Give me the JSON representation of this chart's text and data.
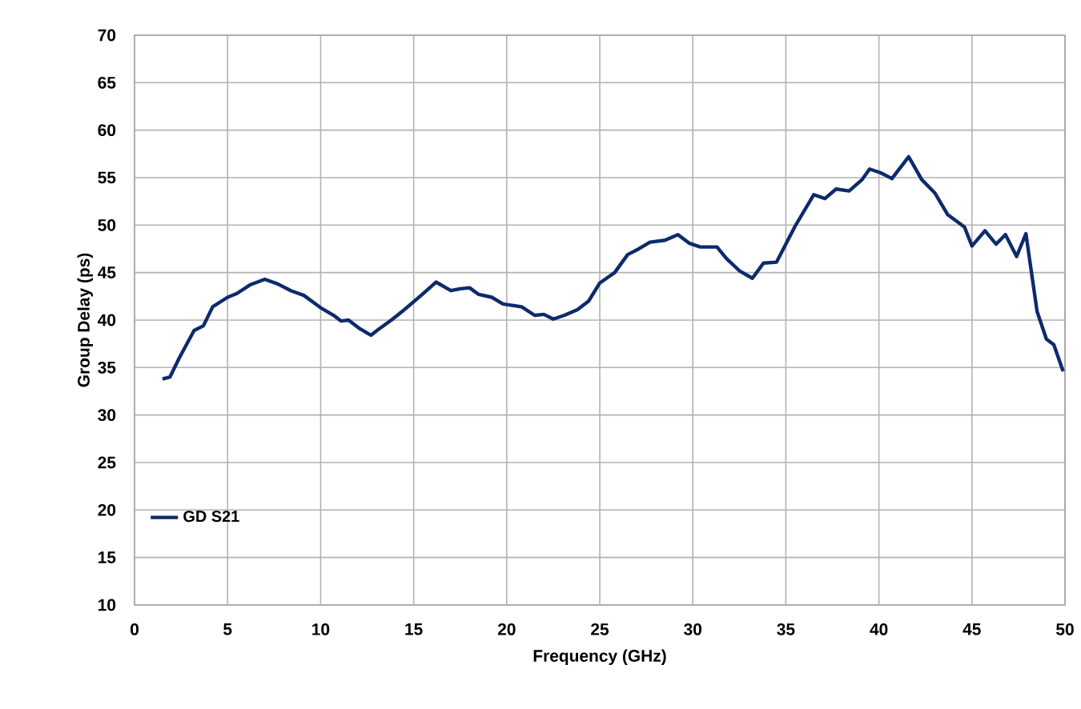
{
  "chart_data": {
    "type": "line",
    "xlabel": "Frequency (GHz)",
    "ylabel": "Group Delay (ps)",
    "xlim": [
      0,
      50
    ],
    "xticks": [
      0,
      5,
      10,
      15,
      20,
      25,
      30,
      35,
      40,
      45,
      50
    ],
    "ylim": [
      10,
      70
    ],
    "yticks": [
      10,
      15,
      20,
      25,
      30,
      35,
      40,
      45,
      50,
      55,
      60,
      65,
      70
    ],
    "grid": true,
    "legend": "bottom left",
    "marker": "none",
    "line_style": "solid",
    "series": [
      {
        "name": "GD S21",
        "color": "#0d2b6b",
        "x": [
          1.5,
          1.9,
          2.4,
          3.2,
          3.7,
          4.2,
          5.0,
          5.5,
          6.2,
          7.0,
          7.7,
          8.4,
          9.1,
          10.0,
          10.7,
          11.1,
          11.5,
          12.1,
          12.7,
          13.1,
          13.8,
          14.5,
          15.4,
          16.2,
          17.0,
          17.5,
          18.0,
          18.5,
          19.2,
          19.8,
          20.8,
          21.5,
          22.0,
          22.5,
          23.1,
          23.8,
          24.4,
          25.0,
          25.8,
          26.5,
          27.1,
          27.7,
          28.5,
          29.2,
          29.8,
          30.4,
          31.3,
          31.8,
          32.5,
          33.2,
          33.8,
          34.5,
          35.5,
          36.5,
          37.1,
          37.7,
          38.4,
          39.1,
          39.5,
          40.1,
          40.7,
          41.6,
          42.3,
          43.0,
          43.7,
          44.6,
          45.0,
          45.7,
          46.3,
          46.8,
          47.4,
          47.9,
          48.5,
          49.0,
          49.4,
          49.9
        ],
        "values": [
          33.8,
          34.0,
          36.0,
          38.9,
          39.4,
          41.4,
          42.4,
          42.8,
          43.7,
          44.3,
          43.8,
          43.1,
          42.6,
          41.3,
          40.5,
          39.9,
          40.0,
          39.1,
          38.4,
          39.0,
          40.0,
          41.1,
          42.6,
          44.0,
          43.1,
          43.3,
          43.4,
          42.7,
          42.4,
          41.7,
          41.4,
          40.5,
          40.6,
          40.1,
          40.5,
          41.1,
          42.0,
          43.9,
          45.0,
          46.9,
          47.5,
          48.2,
          48.4,
          49.0,
          48.1,
          47.7,
          47.7,
          46.5,
          45.2,
          44.4,
          46.0,
          46.1,
          49.9,
          53.2,
          52.8,
          53.8,
          53.6,
          54.8,
          55.9,
          55.5,
          54.9,
          57.2,
          54.8,
          53.4,
          51.1,
          49.8,
          47.8,
          49.4,
          48.0,
          49.0,
          46.7,
          49.1,
          40.9,
          38.0,
          37.4,
          34.6
        ]
      }
    ]
  }
}
